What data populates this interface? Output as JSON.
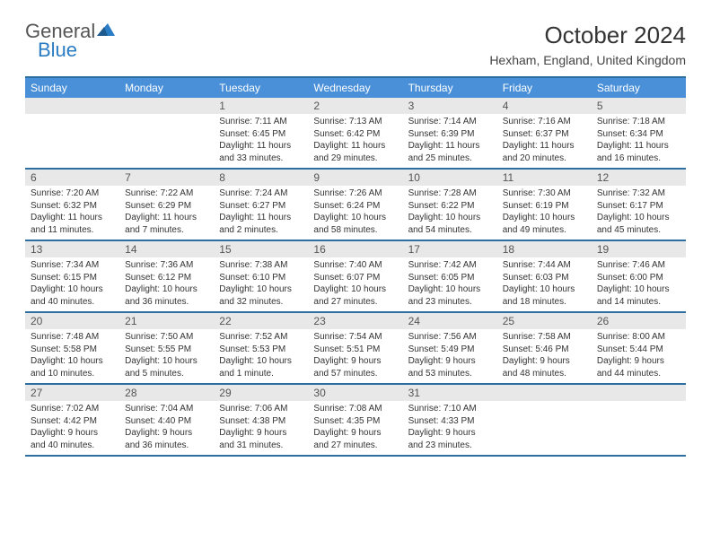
{
  "brand": {
    "name_gray": "General",
    "name_blue": "Blue"
  },
  "title": "October 2024",
  "location": "Hexham, England, United Kingdom",
  "colors": {
    "header_bg": "#4a90d9",
    "rule": "#2d6fa3",
    "daynum_bg": "#e8e8e8",
    "text": "#333333",
    "brand_blue": "#2a7cc4"
  },
  "day_headers": [
    "Sunday",
    "Monday",
    "Tuesday",
    "Wednesday",
    "Thursday",
    "Friday",
    "Saturday"
  ],
  "weeks": [
    [
      null,
      null,
      {
        "n": "1",
        "sunrise": "Sunrise: 7:11 AM",
        "sunset": "Sunset: 6:45 PM",
        "dl1": "Daylight: 11 hours",
        "dl2": "and 33 minutes."
      },
      {
        "n": "2",
        "sunrise": "Sunrise: 7:13 AM",
        "sunset": "Sunset: 6:42 PM",
        "dl1": "Daylight: 11 hours",
        "dl2": "and 29 minutes."
      },
      {
        "n": "3",
        "sunrise": "Sunrise: 7:14 AM",
        "sunset": "Sunset: 6:39 PM",
        "dl1": "Daylight: 11 hours",
        "dl2": "and 25 minutes."
      },
      {
        "n": "4",
        "sunrise": "Sunrise: 7:16 AM",
        "sunset": "Sunset: 6:37 PM",
        "dl1": "Daylight: 11 hours",
        "dl2": "and 20 minutes."
      },
      {
        "n": "5",
        "sunrise": "Sunrise: 7:18 AM",
        "sunset": "Sunset: 6:34 PM",
        "dl1": "Daylight: 11 hours",
        "dl2": "and 16 minutes."
      }
    ],
    [
      {
        "n": "6",
        "sunrise": "Sunrise: 7:20 AM",
        "sunset": "Sunset: 6:32 PM",
        "dl1": "Daylight: 11 hours",
        "dl2": "and 11 minutes."
      },
      {
        "n": "7",
        "sunrise": "Sunrise: 7:22 AM",
        "sunset": "Sunset: 6:29 PM",
        "dl1": "Daylight: 11 hours",
        "dl2": "and 7 minutes."
      },
      {
        "n": "8",
        "sunrise": "Sunrise: 7:24 AM",
        "sunset": "Sunset: 6:27 PM",
        "dl1": "Daylight: 11 hours",
        "dl2": "and 2 minutes."
      },
      {
        "n": "9",
        "sunrise": "Sunrise: 7:26 AM",
        "sunset": "Sunset: 6:24 PM",
        "dl1": "Daylight: 10 hours",
        "dl2": "and 58 minutes."
      },
      {
        "n": "10",
        "sunrise": "Sunrise: 7:28 AM",
        "sunset": "Sunset: 6:22 PM",
        "dl1": "Daylight: 10 hours",
        "dl2": "and 54 minutes."
      },
      {
        "n": "11",
        "sunrise": "Sunrise: 7:30 AM",
        "sunset": "Sunset: 6:19 PM",
        "dl1": "Daylight: 10 hours",
        "dl2": "and 49 minutes."
      },
      {
        "n": "12",
        "sunrise": "Sunrise: 7:32 AM",
        "sunset": "Sunset: 6:17 PM",
        "dl1": "Daylight: 10 hours",
        "dl2": "and 45 minutes."
      }
    ],
    [
      {
        "n": "13",
        "sunrise": "Sunrise: 7:34 AM",
        "sunset": "Sunset: 6:15 PM",
        "dl1": "Daylight: 10 hours",
        "dl2": "and 40 minutes."
      },
      {
        "n": "14",
        "sunrise": "Sunrise: 7:36 AM",
        "sunset": "Sunset: 6:12 PM",
        "dl1": "Daylight: 10 hours",
        "dl2": "and 36 minutes."
      },
      {
        "n": "15",
        "sunrise": "Sunrise: 7:38 AM",
        "sunset": "Sunset: 6:10 PM",
        "dl1": "Daylight: 10 hours",
        "dl2": "and 32 minutes."
      },
      {
        "n": "16",
        "sunrise": "Sunrise: 7:40 AM",
        "sunset": "Sunset: 6:07 PM",
        "dl1": "Daylight: 10 hours",
        "dl2": "and 27 minutes."
      },
      {
        "n": "17",
        "sunrise": "Sunrise: 7:42 AM",
        "sunset": "Sunset: 6:05 PM",
        "dl1": "Daylight: 10 hours",
        "dl2": "and 23 minutes."
      },
      {
        "n": "18",
        "sunrise": "Sunrise: 7:44 AM",
        "sunset": "Sunset: 6:03 PM",
        "dl1": "Daylight: 10 hours",
        "dl2": "and 18 minutes."
      },
      {
        "n": "19",
        "sunrise": "Sunrise: 7:46 AM",
        "sunset": "Sunset: 6:00 PM",
        "dl1": "Daylight: 10 hours",
        "dl2": "and 14 minutes."
      }
    ],
    [
      {
        "n": "20",
        "sunrise": "Sunrise: 7:48 AM",
        "sunset": "Sunset: 5:58 PM",
        "dl1": "Daylight: 10 hours",
        "dl2": "and 10 minutes."
      },
      {
        "n": "21",
        "sunrise": "Sunrise: 7:50 AM",
        "sunset": "Sunset: 5:55 PM",
        "dl1": "Daylight: 10 hours",
        "dl2": "and 5 minutes."
      },
      {
        "n": "22",
        "sunrise": "Sunrise: 7:52 AM",
        "sunset": "Sunset: 5:53 PM",
        "dl1": "Daylight: 10 hours",
        "dl2": "and 1 minute."
      },
      {
        "n": "23",
        "sunrise": "Sunrise: 7:54 AM",
        "sunset": "Sunset: 5:51 PM",
        "dl1": "Daylight: 9 hours",
        "dl2": "and 57 minutes."
      },
      {
        "n": "24",
        "sunrise": "Sunrise: 7:56 AM",
        "sunset": "Sunset: 5:49 PM",
        "dl1": "Daylight: 9 hours",
        "dl2": "and 53 minutes."
      },
      {
        "n": "25",
        "sunrise": "Sunrise: 7:58 AM",
        "sunset": "Sunset: 5:46 PM",
        "dl1": "Daylight: 9 hours",
        "dl2": "and 48 minutes."
      },
      {
        "n": "26",
        "sunrise": "Sunrise: 8:00 AM",
        "sunset": "Sunset: 5:44 PM",
        "dl1": "Daylight: 9 hours",
        "dl2": "and 44 minutes."
      }
    ],
    [
      {
        "n": "27",
        "sunrise": "Sunrise: 7:02 AM",
        "sunset": "Sunset: 4:42 PM",
        "dl1": "Daylight: 9 hours",
        "dl2": "and 40 minutes."
      },
      {
        "n": "28",
        "sunrise": "Sunrise: 7:04 AM",
        "sunset": "Sunset: 4:40 PM",
        "dl1": "Daylight: 9 hours",
        "dl2": "and 36 minutes."
      },
      {
        "n": "29",
        "sunrise": "Sunrise: 7:06 AM",
        "sunset": "Sunset: 4:38 PM",
        "dl1": "Daylight: 9 hours",
        "dl2": "and 31 minutes."
      },
      {
        "n": "30",
        "sunrise": "Sunrise: 7:08 AM",
        "sunset": "Sunset: 4:35 PM",
        "dl1": "Daylight: 9 hours",
        "dl2": "and 27 minutes."
      },
      {
        "n": "31",
        "sunrise": "Sunrise: 7:10 AM",
        "sunset": "Sunset: 4:33 PM",
        "dl1": "Daylight: 9 hours",
        "dl2": "and 23 minutes."
      },
      null,
      null
    ]
  ]
}
